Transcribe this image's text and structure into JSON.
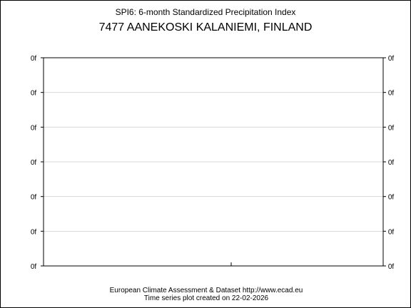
{
  "chart_data": {
    "type": "line",
    "title": "SPI6: 6-month Standardized Precipitation Index",
    "subtitle": "7477 AANEKOSKI KALANIEMI, FINLAND",
    "xlabel": "",
    "ylabel": "",
    "y_ticks_left": [
      "0f",
      "0f",
      "0f",
      "0f",
      "0f",
      "0f",
      "0f"
    ],
    "y_ticks_right": [
      "0f",
      "0f",
      "0f",
      "0f",
      "0f",
      "0f",
      "0f"
    ],
    "grid": true,
    "series": []
  },
  "footer": {
    "line1": "European Climate Assessment & Dataset  http://www.ecad.eu",
    "line2": "Time series plot created on 22-02-2026"
  },
  "colors": {
    "background": "#ffffff",
    "axis": "#000000",
    "grid": "#d8d8d8"
  }
}
